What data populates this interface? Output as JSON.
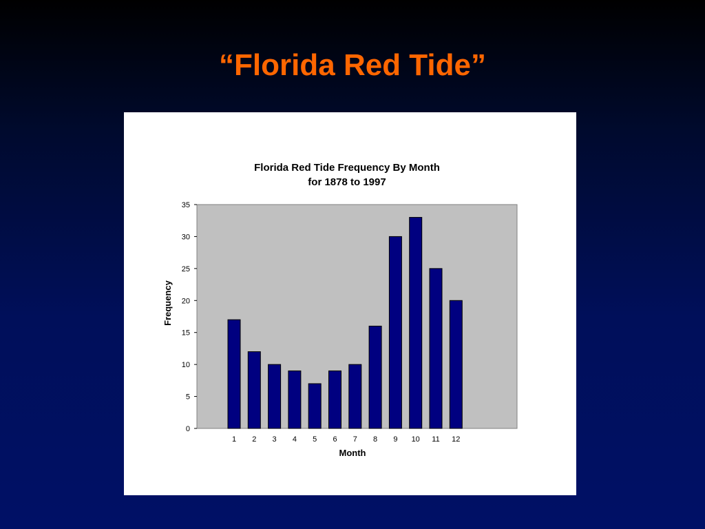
{
  "slide": {
    "title": "“Florida Red Tide”",
    "title_color": "#ff6600"
  },
  "chart_data": {
    "type": "bar",
    "title": "Florida Red Tide Frequency By Month",
    "subtitle": "for 1878 to 1997",
    "xlabel": "Month",
    "ylabel": "Frequency",
    "categories": [
      "1",
      "2",
      "3",
      "4",
      "5",
      "6",
      "7",
      "8",
      "9",
      "10",
      "11",
      "12"
    ],
    "values": [
      17,
      12,
      10,
      9,
      7,
      9,
      10,
      16,
      30,
      33,
      25,
      20
    ],
    "ylim": [
      0,
      35
    ],
    "yticks": [
      "0",
      "5",
      "10",
      "15",
      "20",
      "25",
      "30",
      "35"
    ],
    "grid": false,
    "legend": "none",
    "bar_color": "#000080",
    "plot_background": "#c0c0c0"
  }
}
